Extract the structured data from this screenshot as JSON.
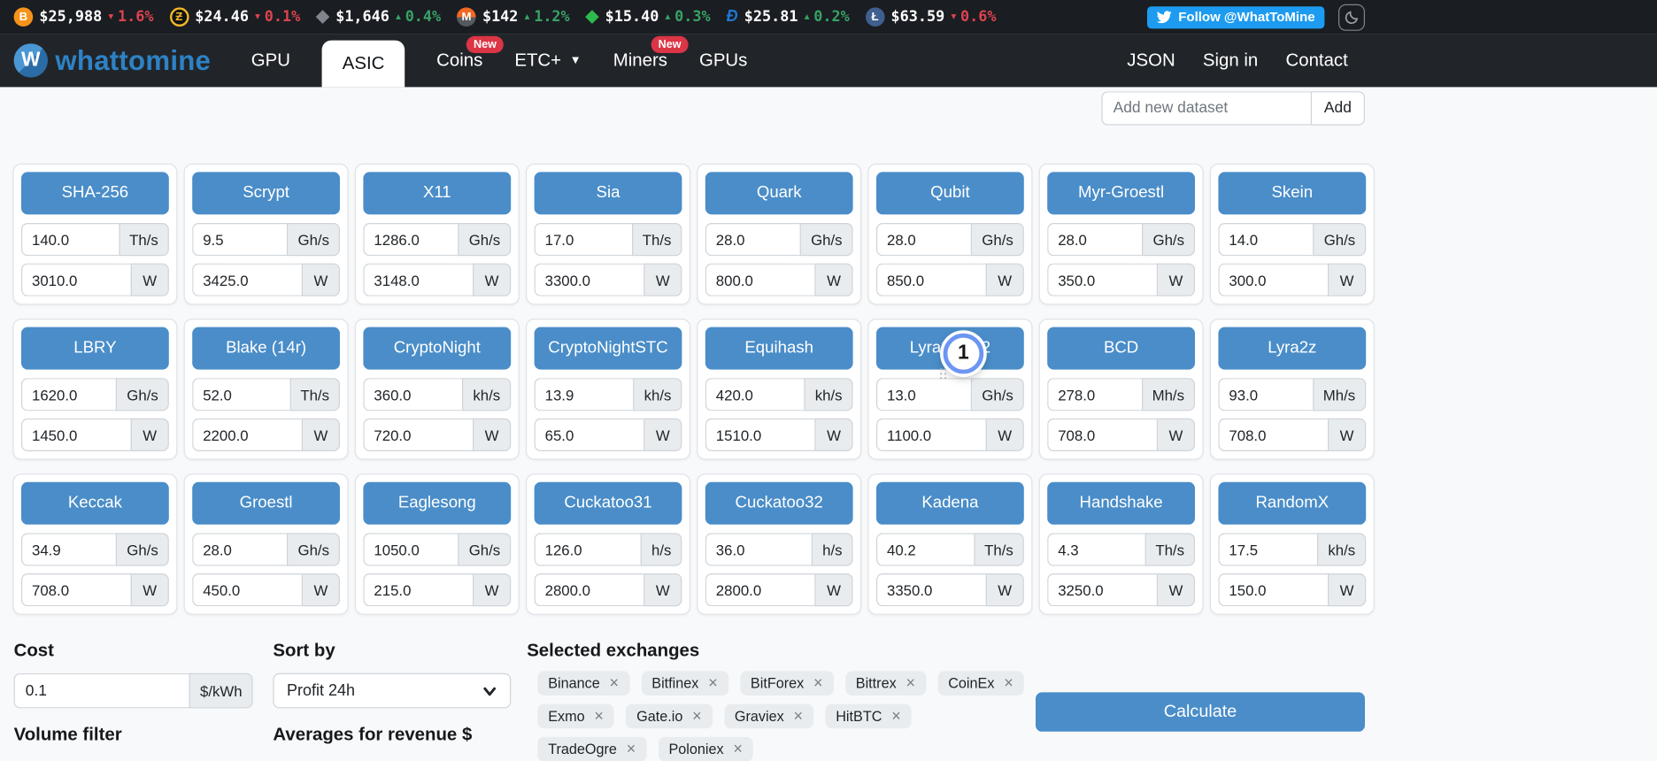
{
  "theme": {
    "accent_blue": "#4a8dc8",
    "twitter_blue": "#1d9bf0",
    "badge_red": "#dc3545",
    "ticker_up_color": "#37a266",
    "ticker_down_color": "#dc4350",
    "navbar_bg": "#212529",
    "ticker_bar_bg": "#1a1d21"
  },
  "ticker": {
    "items": [
      {
        "name": "bitcoin",
        "icon": {
          "shape": "circle",
          "glyph": "B",
          "bg": "#f7931a",
          "fg": "#ffffff"
        },
        "price": "$25,988",
        "change": "1.6%",
        "direction": "down"
      },
      {
        "name": "zcash",
        "icon": {
          "shape": "circle",
          "glyph": "Ƶ",
          "bg": "#101214",
          "fg": "#f4b728",
          "border": "#f4b728"
        },
        "price": "$24.46",
        "change": "0.1%",
        "direction": "down"
      },
      {
        "name": "ethereum",
        "icon": {
          "shape": "diamond",
          "glyph": "◆",
          "fg": "#80858e"
        },
        "price": "$1,646",
        "change": "0.4%",
        "direction": "up"
      },
      {
        "name": "monero",
        "icon": {
          "shape": "circle",
          "glyph": "M",
          "bg": "linear-gradient(180deg,#f26822 52%,#555a5f 52%)",
          "fg": "#ffffff"
        },
        "price": "$142",
        "change": "1.2%",
        "direction": "up"
      },
      {
        "name": "ethereum-classic",
        "icon": {
          "shape": "diamond",
          "glyph": "◆",
          "fg": "#2eb94d"
        },
        "price": "$15.40",
        "change": "0.3%",
        "direction": "up"
      },
      {
        "name": "dash",
        "icon": {
          "shape": "text",
          "glyph": "Đ",
          "fg": "#1e78d2"
        },
        "price": "$25.81",
        "change": "0.2%",
        "direction": "up"
      },
      {
        "name": "litecoin",
        "icon": {
          "shape": "circle",
          "glyph": "Ł",
          "bg": "#3f608f",
          "fg": "#ffffff"
        },
        "price": "$63.59",
        "change": "0.6%",
        "direction": "down"
      }
    ]
  },
  "follow": {
    "label": "Follow @WhatToMine"
  },
  "nav": {
    "brand": "whattomine",
    "items": [
      {
        "label": "GPU"
      },
      {
        "label": "ASIC",
        "active": true
      },
      {
        "label": "Coins",
        "badge": "New"
      },
      {
        "label": "ETC+",
        "caret": true
      },
      {
        "label": "Miners",
        "badge": "New"
      },
      {
        "label": "GPUs"
      }
    ],
    "right_items": [
      "JSON",
      "Sign in",
      "Contact"
    ]
  },
  "dataset_bar": {
    "placeholder": "Add new dataset",
    "button": "Add"
  },
  "algorithms": [
    {
      "name": "SHA-256",
      "hashrate": "140.0",
      "unit": "Th/s",
      "power": "3010.0",
      "power_unit": "W"
    },
    {
      "name": "Scrypt",
      "hashrate": "9.5",
      "unit": "Gh/s",
      "power": "3425.0",
      "power_unit": "W"
    },
    {
      "name": "X11",
      "hashrate": "1286.0",
      "unit": "Gh/s",
      "power": "3148.0",
      "power_unit": "W"
    },
    {
      "name": "Sia",
      "hashrate": "17.0",
      "unit": "Th/s",
      "power": "3300.0",
      "power_unit": "W"
    },
    {
      "name": "Quark",
      "hashrate": "28.0",
      "unit": "Gh/s",
      "power": "800.0",
      "power_unit": "W"
    },
    {
      "name": "Qubit",
      "hashrate": "28.0",
      "unit": "Gh/s",
      "power": "850.0",
      "power_unit": "W"
    },
    {
      "name": "Myr-Groestl",
      "hashrate": "28.0",
      "unit": "Gh/s",
      "power": "350.0",
      "power_unit": "W"
    },
    {
      "name": "Skein",
      "hashrate": "14.0",
      "unit": "Gh/s",
      "power": "300.0",
      "power_unit": "W"
    },
    {
      "name": "LBRY",
      "hashrate": "1620.0",
      "unit": "Gh/s",
      "power": "1450.0",
      "power_unit": "W"
    },
    {
      "name": "Blake (14r)",
      "hashrate": "52.0",
      "unit": "Th/s",
      "power": "2200.0",
      "power_unit": "W"
    },
    {
      "name": "CryptoNight",
      "hashrate": "360.0",
      "unit": "kh/s",
      "power": "720.0",
      "power_unit": "W"
    },
    {
      "name": "CryptoNightSTC",
      "hashrate": "13.9",
      "unit": "kh/s",
      "power": "65.0",
      "power_unit": "W"
    },
    {
      "name": "Equihash",
      "hashrate": "420.0",
      "unit": "kh/s",
      "power": "1510.0",
      "power_unit": "W"
    },
    {
      "name": "Lyra2REv2",
      "hashrate": "13.0",
      "unit": "Gh/s",
      "power": "1100.0",
      "power_unit": "W",
      "marker": "1"
    },
    {
      "name": "BCD",
      "hashrate": "278.0",
      "unit": "Mh/s",
      "power": "708.0",
      "power_unit": "W"
    },
    {
      "name": "Lyra2z",
      "hashrate": "93.0",
      "unit": "Mh/s",
      "power": "708.0",
      "power_unit": "W"
    },
    {
      "name": "Keccak",
      "hashrate": "34.9",
      "unit": "Gh/s",
      "power": "708.0",
      "power_unit": "W"
    },
    {
      "name": "Groestl",
      "hashrate": "28.0",
      "unit": "Gh/s",
      "power": "450.0",
      "power_unit": "W"
    },
    {
      "name": "Eaglesong",
      "hashrate": "1050.0",
      "unit": "Gh/s",
      "power": "215.0",
      "power_unit": "W"
    },
    {
      "name": "Cuckatoo31",
      "hashrate": "126.0",
      "unit": "h/s",
      "power": "2800.0",
      "power_unit": "W"
    },
    {
      "name": "Cuckatoo32",
      "hashrate": "36.0",
      "unit": "h/s",
      "power": "2800.0",
      "power_unit": "W"
    },
    {
      "name": "Kadena",
      "hashrate": "40.2",
      "unit": "Th/s",
      "power": "3350.0",
      "power_unit": "W"
    },
    {
      "name": "Handshake",
      "hashrate": "4.3",
      "unit": "Th/s",
      "power": "3250.0",
      "power_unit": "W"
    },
    {
      "name": "RandomX",
      "hashrate": "17.5",
      "unit": "kh/s",
      "power": "150.0",
      "power_unit": "W"
    }
  ],
  "annotation": {
    "label": "1",
    "attached_to": "Lyra2REv2"
  },
  "controls": {
    "cost": {
      "label": "Cost",
      "value": "0.1",
      "unit": "$/kWh"
    },
    "volume_filter_label": "Volume filter",
    "sort": {
      "label": "Sort by",
      "value": "Profit 24h"
    },
    "averages_label": "Averages for revenue $",
    "exchanges": {
      "label": "Selected exchanges",
      "items": [
        "Binance",
        "Bitfinex",
        "BitForex",
        "Bittrex",
        "CoinEx",
        "Exmo",
        "Gate.io",
        "Graviex",
        "HitBTC",
        "TradeOgre",
        "Poloniex"
      ]
    },
    "calculate_label": "Calculate"
  }
}
